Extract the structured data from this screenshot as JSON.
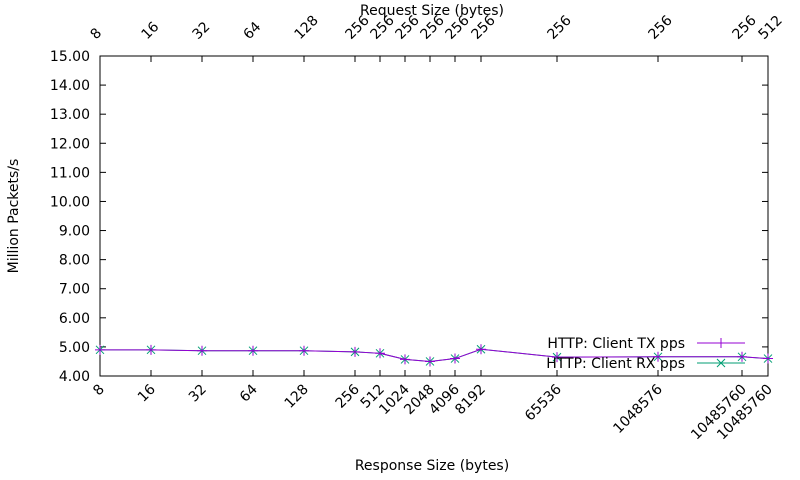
{
  "chart_data": {
    "type": "line",
    "x_label": "Response Size (bytes)",
    "x2_label": "Request Size (bytes)",
    "y_label": "Million Packets/s",
    "categories": [
      "8",
      "16",
      "32",
      "64",
      "128",
      "256",
      "512",
      "1024",
      "2048",
      "4096",
      "8192",
      "65536",
      "1048576",
      "10485760",
      "10485760"
    ],
    "x2_categories": [
      "8",
      "16",
      "32",
      "64",
      "128",
      "256",
      "256",
      "256",
      "256",
      "256",
      "256",
      "256",
      "256",
      "256",
      "512"
    ],
    "ylim": [
      4,
      15
    ],
    "yticks": [
      {
        "value": 4,
        "label": "4.00"
      },
      {
        "value": 5,
        "label": "5.00"
      },
      {
        "value": 6,
        "label": "6.00"
      },
      {
        "value": 7,
        "label": "7.00"
      },
      {
        "value": 8,
        "label": "8.00"
      },
      {
        "value": 9,
        "label": "9.00"
      },
      {
        "value": 10,
        "label": "10.00"
      },
      {
        "value": 11,
        "label": "11.00"
      },
      {
        "value": 12,
        "label": "12.00"
      },
      {
        "value": 13,
        "label": "13.00"
      },
      {
        "value": 14,
        "label": "14.00"
      },
      {
        "value": 15,
        "label": "15.00"
      }
    ],
    "legend": "bottom-right",
    "series": [
      {
        "name": "HTTP: Client TX pps",
        "color": "#9400d3",
        "marker": "+",
        "values": [
          4.9,
          4.9,
          4.87,
          4.87,
          4.87,
          4.83,
          4.78,
          4.57,
          4.5,
          4.6,
          4.92,
          4.65,
          4.66,
          4.66,
          4.6
        ]
      },
      {
        "name": "HTTP: Client RX pps",
        "color": "#009e73",
        "marker": "x",
        "values": [
          4.9,
          4.9,
          4.87,
          4.87,
          4.87,
          4.83,
          4.78,
          4.57,
          4.5,
          4.6,
          4.92,
          4.65,
          4.66,
          4.66,
          4.6
        ]
      }
    ]
  }
}
